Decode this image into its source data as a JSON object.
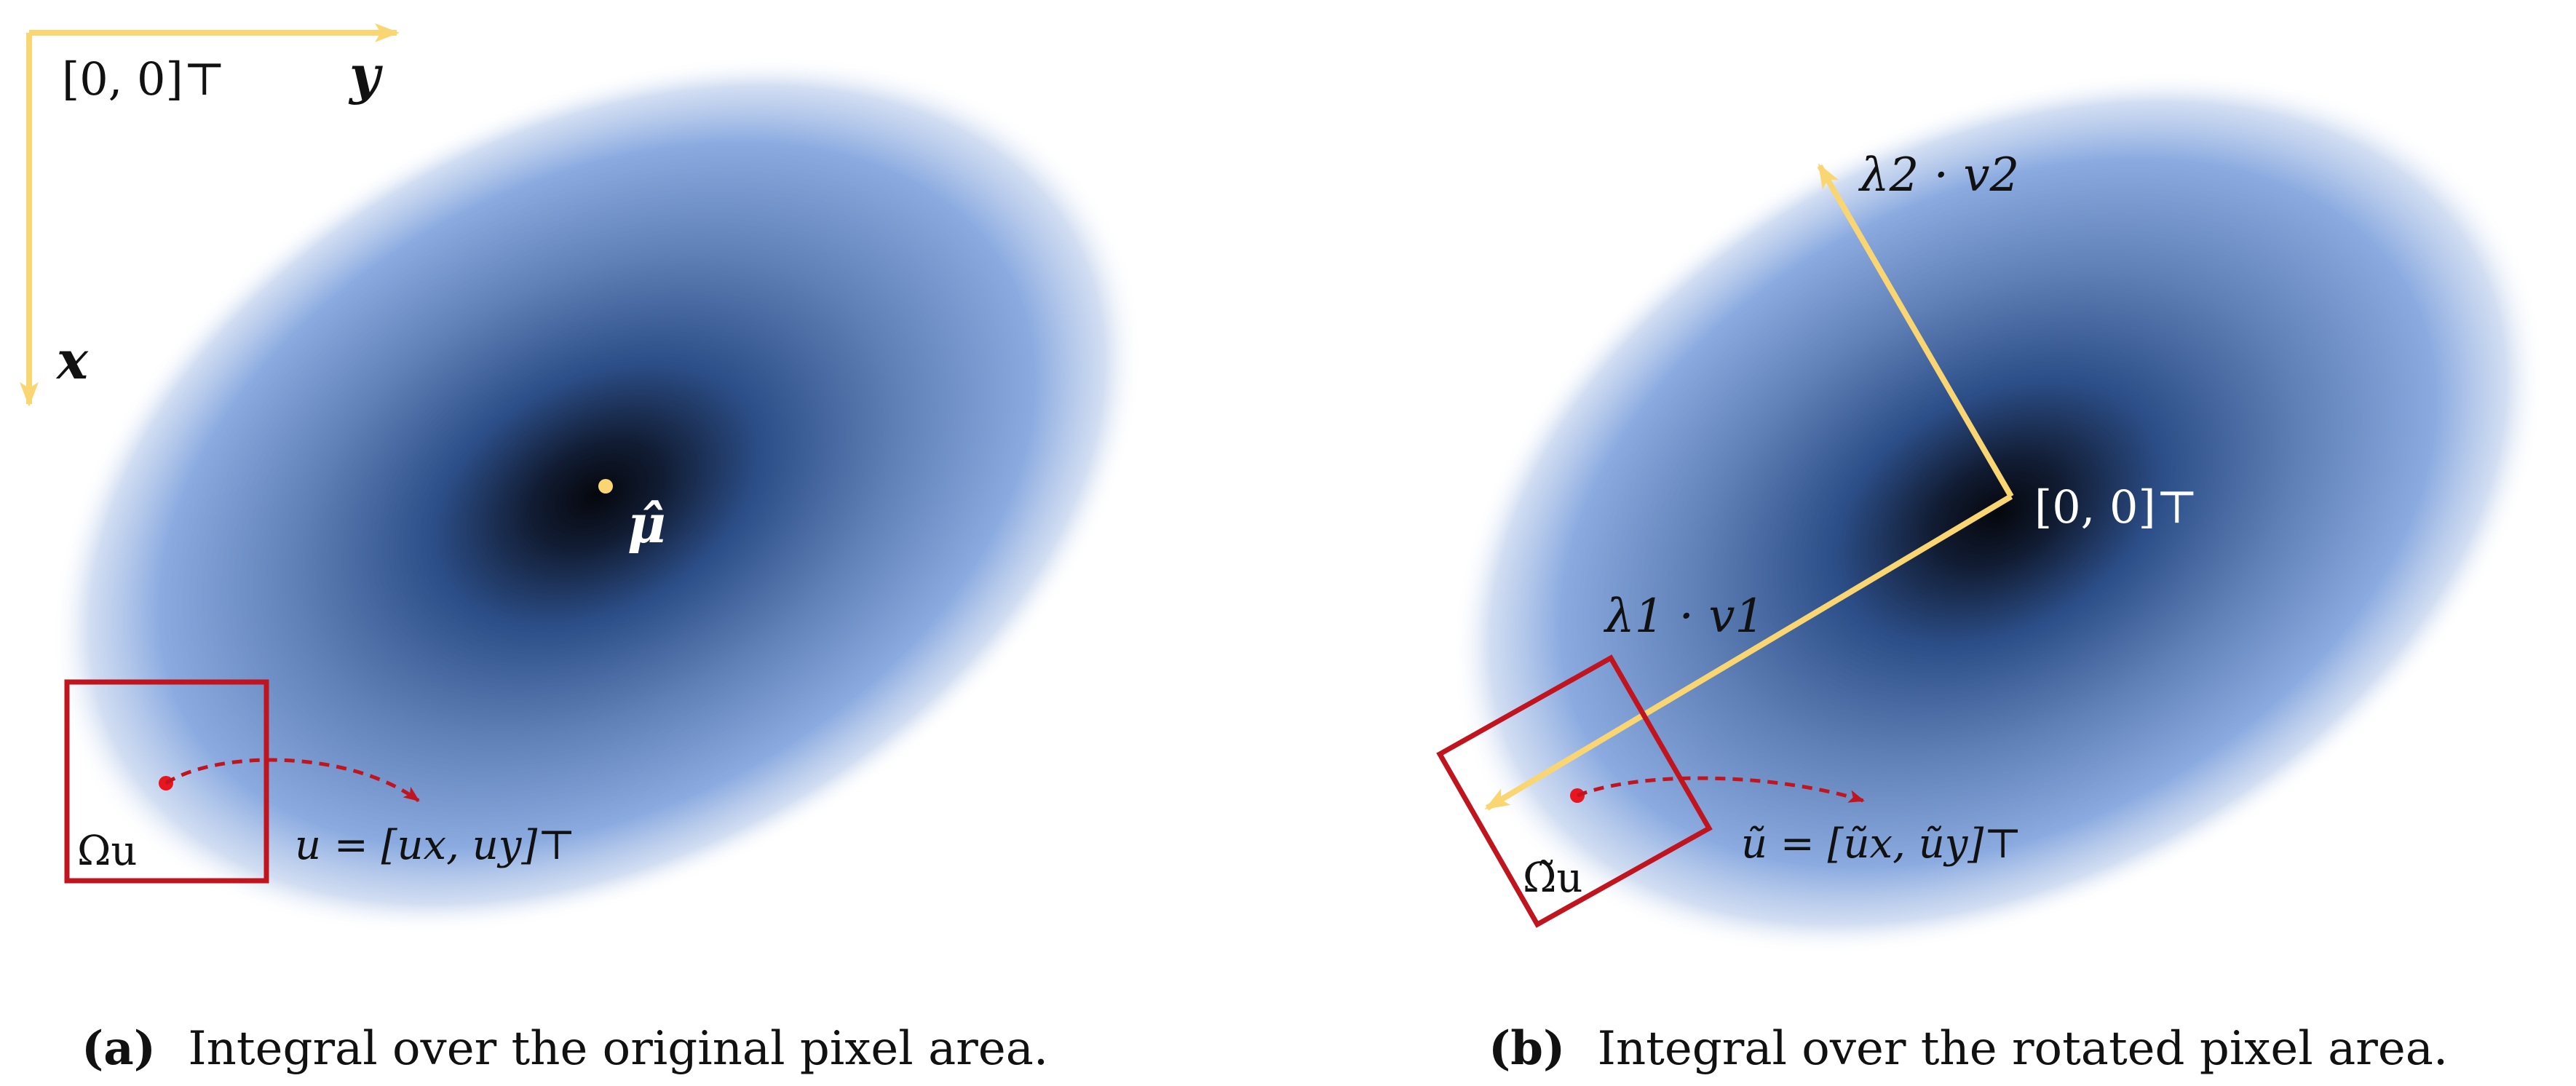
{
  "colors": {
    "gaussian_core": "#05070d",
    "gaussian_mid": "#2c4e88",
    "gaussian_edge": "#8aaae0",
    "axis": "#fad673",
    "pixel_box": "#c0141e",
    "pixel_point": "#e8141e"
  },
  "panel_a": {
    "origin_label": "[0, 0]⊤",
    "axis_x": "x",
    "axis_y": "y",
    "mean_label": "μ̂",
    "region_label": "Ωu",
    "pixel_label": "u = [ux, uy]⊤",
    "caption_tag": "(a)",
    "caption_text": "Integral over the original pixel area."
  },
  "panel_b": {
    "origin_label": "[0, 0]⊤",
    "eig1_label": "λ1 · v1",
    "eig2_label": "λ2 · v2",
    "region_label": "Ω̃u",
    "pixel_label": "ũ = [ũx, ũy]⊤",
    "caption_tag": "(b)",
    "caption_text": "Integral over the rotated pixel area."
  }
}
